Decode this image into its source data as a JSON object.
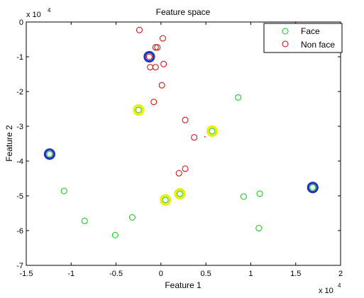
{
  "chart_data": {
    "type": "scatter",
    "title": "Feature space",
    "xlabel": "Feature 1",
    "ylabel": "Feature 2",
    "x_multiplier": "x 10",
    "x_multiplier_exp": "4",
    "y_multiplier": "x 10",
    "y_multiplier_exp": "4",
    "xlim": [
      -1.5,
      2
    ],
    "ylim": [
      -7,
      0
    ],
    "xticks": [
      -1.5,
      -1,
      -0.5,
      0,
      0.5,
      1,
      1.5,
      2
    ],
    "xtick_labels": [
      "-1.5",
      "-1",
      "-0.5",
      "0",
      "0.5",
      "1",
      "1.5",
      "2"
    ],
    "yticks": [
      0,
      -1,
      -2,
      -3,
      -4,
      -5,
      -6,
      -7
    ],
    "ytick_labels": [
      "0",
      "-1",
      "-2",
      "-3",
      "-4",
      "-5",
      "-6",
      "-7"
    ],
    "grid": false,
    "legend_position": "top-right",
    "series": [
      {
        "name": "Face",
        "color": "#00cc00",
        "marker": "circle-open",
        "points": [
          {
            "x": -1.24,
            "y": -3.8
          },
          {
            "x": -1.08,
            "y": -4.86
          },
          {
            "x": -0.85,
            "y": -5.72
          },
          {
            "x": -0.51,
            "y": -6.13
          },
          {
            "x": -0.32,
            "y": -5.62
          },
          {
            "x": -0.25,
            "y": -2.53
          },
          {
            "x": 0.05,
            "y": -5.12
          },
          {
            "x": 0.21,
            "y": -4.94
          },
          {
            "x": 0.57,
            "y": -3.14
          },
          {
            "x": 0.86,
            "y": -2.17
          },
          {
            "x": 0.92,
            "y": -5.02
          },
          {
            "x": 1.1,
            "y": -4.94
          },
          {
            "x": 1.09,
            "y": -5.93
          },
          {
            "x": 1.69,
            "y": -4.76
          }
        ]
      },
      {
        "name": "Non face",
        "color": "#cc0000",
        "marker": "circle-open",
        "points": [
          {
            "x": -0.24,
            "y": -0.23
          },
          {
            "x": 0.02,
            "y": -0.47
          },
          {
            "x": -0.04,
            "y": -0.73
          },
          {
            "x": -0.06,
            "y": -0.73
          },
          {
            "x": -0.13,
            "y": -1.0
          },
          {
            "x": -0.12,
            "y": -1.3
          },
          {
            "x": -0.06,
            "y": -1.3
          },
          {
            "x": 0.03,
            "y": -1.21
          },
          {
            "x": 0.01,
            "y": -1.82
          },
          {
            "x": -0.08,
            "y": -2.3
          },
          {
            "x": 0.27,
            "y": -2.82
          },
          {
            "x": 0.37,
            "y": -3.32
          },
          {
            "x": 0.27,
            "y": -4.22
          },
          {
            "x": 0.2,
            "y": -4.35
          }
        ]
      }
    ],
    "highlights": [
      {
        "color": "#2233bb",
        "points": [
          {
            "x": -1.24,
            "y": -3.8
          },
          {
            "x": -0.13,
            "y": -1.0
          },
          {
            "x": 1.69,
            "y": -4.76
          }
        ]
      },
      {
        "color": "#eeee00",
        "points": [
          {
            "x": -0.25,
            "y": -2.53
          },
          {
            "x": 0.05,
            "y": -5.12
          },
          {
            "x": 0.21,
            "y": -4.94
          },
          {
            "x": 0.57,
            "y": -3.14
          }
        ]
      }
    ],
    "extra_marks": [
      {
        "x": 0.49,
        "y": -3.3,
        "color": "#cc0000"
      }
    ]
  }
}
